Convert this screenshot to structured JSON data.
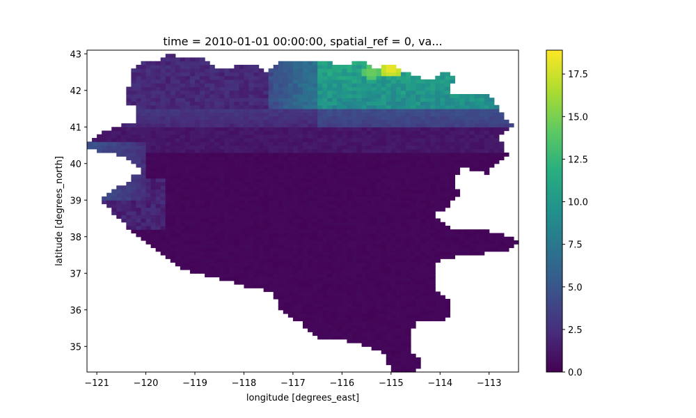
{
  "chart_data": {
    "type": "heatmap",
    "title": "time = 2010-01-01 00:00:00, spatial_ref = 0, va...",
    "xlabel": "longitude [degrees_east]",
    "ylabel": "latitude [degrees_north]",
    "xlim": [
      -121.2,
      -112.4
    ],
    "ylim": [
      34.3,
      43.1
    ],
    "x_ticks": [
      -121,
      -120,
      -119,
      -118,
      -117,
      -116,
      -115,
      -114,
      -113
    ],
    "y_ticks": [
      35,
      36,
      37,
      38,
      39,
      40,
      41,
      42,
      43
    ],
    "colormap": "viridis",
    "colorbar": {
      "min": 0.0,
      "max": 18.9,
      "ticks": [
        "0.0",
        "2.5",
        "5.0",
        "7.5",
        "10.0",
        "12.5",
        "15.0",
        "17.5"
      ]
    },
    "grid": false,
    "cell_size_deg": 0.1,
    "approx_values": [
      {
        "region": "southern and central basin (lat 34.3–40.3)",
        "value": 0.3
      },
      {
        "region": "lat 40.3–41.0",
        "value": 1.0
      },
      {
        "region": "lat 41.0–41.5",
        "value": 2.0
      },
      {
        "region": "northwest (lon -120.5 to -118, lat 41.5–43)",
        "value": 2.0
      },
      {
        "region": "north-central (lon -117.5 to -116.5, lat 41.5–42.7)",
        "value": 5.0
      },
      {
        "region": "northeast (lon -116.5 to -113.8, lat 41.5–42.7)",
        "value": 9.5
      },
      {
        "region": "peak near lon -115, lat 42.6",
        "value": 18.9
      },
      {
        "region": "secondary peak near lon -115.4, lat 42.5",
        "value": 15.0
      },
      {
        "region": "west edge (lon -121.2 to -120, lat 39–40.5)",
        "value": 4.0
      }
    ]
  }
}
